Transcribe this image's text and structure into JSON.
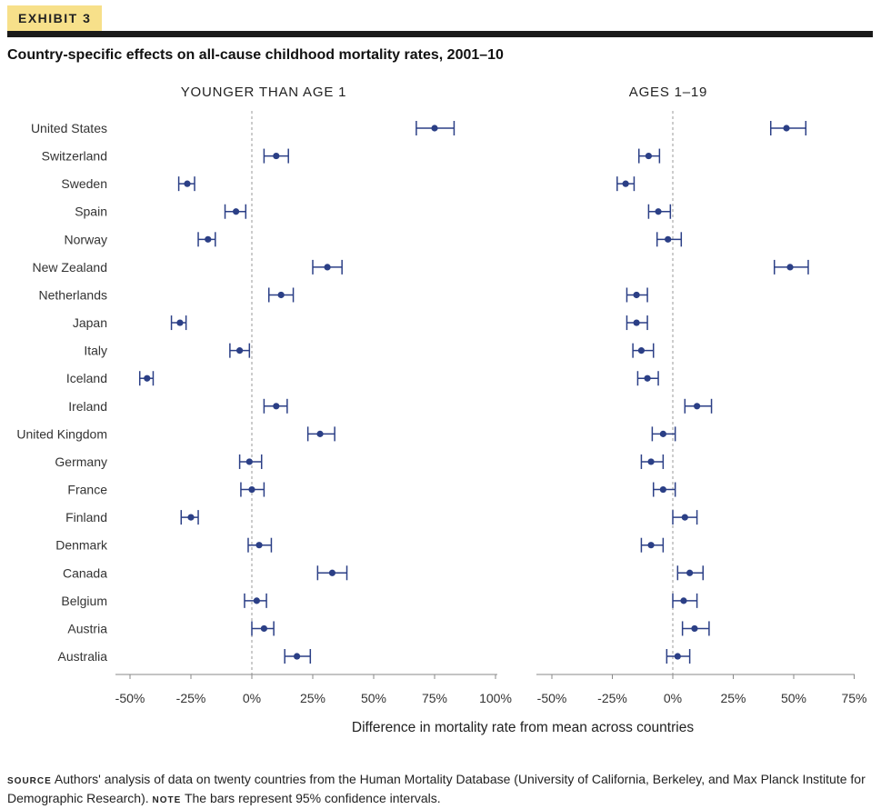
{
  "exhibit_label": "EXHIBIT 3",
  "colors": {
    "marker": "#2b3f86",
    "exhibit_bg": "#f7e08a",
    "zero_line": "#999999"
  },
  "chart_data": [
    {
      "type": "scatter",
      "subtype": "dot-with-error-bars",
      "title": "Country-specific effects on all-cause childhood mortality rates, 2001–10",
      "panel_title": "YOUNGER THAN AGE 1",
      "xlabel": "Difference in mortality rate from mean across countries",
      "xlim": [
        -55,
        102
      ],
      "xticks": [
        "-50%",
        "-25%",
        "0%",
        "25%",
        "50%",
        "75%",
        "100%"
      ],
      "xtick_values": [
        -50,
        -25,
        0,
        25,
        50,
        75,
        100
      ],
      "categories": [
        "United States",
        "Switzerland",
        "Sweden",
        "Spain",
        "Norway",
        "New Zealand",
        "Netherlands",
        "Japan",
        "Italy",
        "Iceland",
        "Ireland",
        "United Kingdom",
        "Germany",
        "France",
        "Finland",
        "Denmark",
        "Canada",
        "Belgium",
        "Austria",
        "Australia"
      ],
      "values": [
        75,
        10,
        -26.5,
        -6.5,
        -18,
        31,
        12,
        -29.5,
        -5,
        -43,
        10,
        28,
        -1,
        0,
        -25,
        3,
        33,
        2,
        5,
        18.5
      ],
      "ci_low": [
        67.5,
        5,
        -30,
        -11,
        -22,
        25,
        7,
        -33,
        -9,
        -46,
        5,
        23,
        -5,
        -4.5,
        -29,
        -1.5,
        27,
        -3,
        0,
        13.5
      ],
      "ci_high": [
        83,
        15,
        -23.5,
        -2.5,
        -15,
        37,
        17,
        -27,
        -1,
        -40.5,
        14.5,
        34,
        4,
        5,
        -22,
        8,
        39,
        6,
        9,
        24
      ]
    },
    {
      "type": "scatter",
      "subtype": "dot-with-error-bars",
      "panel_title": "AGES 1–19",
      "xlim": [
        -57,
        75
      ],
      "xticks": [
        "-50%",
        "-25%",
        "0%",
        "25%",
        "50%",
        "75%"
      ],
      "xtick_values": [
        -50,
        -25,
        0,
        25,
        50,
        75
      ],
      "categories": [
        "United States",
        "Switzerland",
        "Sweden",
        "Spain",
        "Norway",
        "New Zealand",
        "Netherlands",
        "Japan",
        "Italy",
        "Iceland",
        "Ireland",
        "United Kingdom",
        "Germany",
        "France",
        "Finland",
        "Denmark",
        "Canada",
        "Belgium",
        "Austria",
        "Australia"
      ],
      "values": [
        47,
        -10,
        -19.5,
        -6,
        -2,
        48.5,
        -15,
        -15,
        -13,
        -10.5,
        10,
        -4,
        -9,
        -4,
        5,
        -9,
        7,
        4.5,
        9,
        2
      ],
      "ci_low": [
        40.5,
        -14,
        -23,
        -10,
        -6.5,
        42,
        -19,
        -19,
        -16.5,
        -14.5,
        5,
        -8.5,
        -13,
        -8,
        0,
        -13,
        2,
        0,
        4,
        -2.5
      ],
      "ci_high": [
        55,
        -5.5,
        -16,
        -1,
        3.5,
        56,
        -10.5,
        -10.5,
        -8,
        -6,
        16,
        1,
        -4,
        1,
        10,
        -4,
        12.5,
        10,
        15,
        7
      ]
    }
  ],
  "footer": {
    "source_label": "SOURCE",
    "source_text": "Authors' analysis of data on twenty countries from the Human Mortality Database (University of California, Berkeley, and Max Planck Institute for Demographic Research).",
    "note_label": "NOTE",
    "note_text": "The bars represent 95% confidence intervals."
  }
}
